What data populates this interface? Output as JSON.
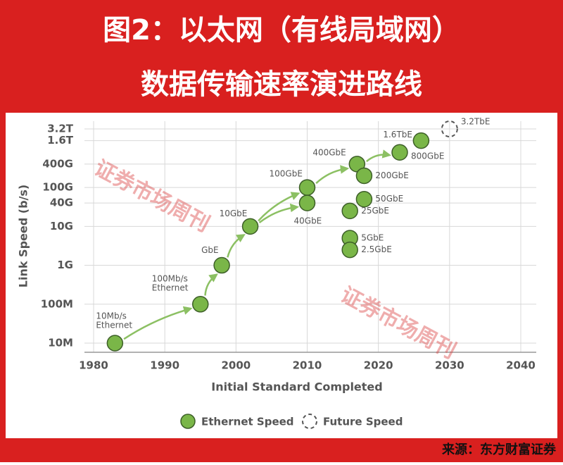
{
  "header": {
    "title_line1": "图2：以太网（有线局域网）",
    "title_line2": "数据传输速率演进路线"
  },
  "chart_data": {
    "type": "scatter",
    "x_label": "Initial Standard Completed",
    "y_label": "Link Speed (b/s)",
    "xlim": [
      1980,
      2040
    ],
    "xticks": [
      1980,
      1990,
      2000,
      2010,
      2020,
      2030,
      2040
    ],
    "ylim": [
      10000000,
      3200000000000
    ],
    "log_y": true,
    "grid": true,
    "yticks": [
      {
        "value": 10000000,
        "label": "10M"
      },
      {
        "value": 100000000,
        "label": "100M"
      },
      {
        "value": 1000000000,
        "label": "1G"
      },
      {
        "value": 10000000000,
        "label": "10G"
      },
      {
        "value": 40000000000,
        "label": "40G"
      },
      {
        "value": 100000000000,
        "label": "100G"
      },
      {
        "value": 400000000000,
        "label": "400G"
      },
      {
        "value": 1600000000000,
        "label": "1.6T"
      },
      {
        "value": 3200000000000,
        "label": "3.2T"
      }
    ],
    "series": [
      {
        "name": "Ethernet Speed",
        "color": "#7ab648",
        "x": [
          1983,
          1995,
          1998,
          2002,
          2010,
          2010,
          2017,
          2018,
          2018,
          2016,
          2016,
          2016,
          2023,
          2026
        ],
        "values": [
          10000000,
          100000000,
          1000000000,
          10000000000,
          100000000000,
          40000000000,
          400000000000,
          200000000000,
          50000000000,
          25000000000,
          5000000000,
          2500000000,
          800000000000,
          1600000000000
        ],
        "labels": [
          [
            "10Mb/s",
            "Ethernet"
          ],
          [
            "100Mb/s",
            "Ethernet"
          ],
          [
            "GbE"
          ],
          [
            "10GbE"
          ],
          [
            "100GbE"
          ],
          [
            "40GbE"
          ],
          [
            "400GbE"
          ],
          [
            "200GbE"
          ],
          [
            "50GbE"
          ],
          [
            "25GbE"
          ],
          [
            "5GbE"
          ],
          [
            "2.5GbE"
          ],
          [
            "800GbE"
          ],
          [
            "1.6TbE"
          ]
        ]
      },
      {
        "name": "Future Speed",
        "color": "#555555",
        "dashed": true,
        "x": [
          2030
        ],
        "values": [
          3200000000000
        ],
        "labels": [
          [
            "3.2TbE"
          ]
        ]
      }
    ],
    "watermarks": [
      "证券市场周刊",
      "证券市场周刊"
    ]
  },
  "footer": {
    "source": "来源：东方财富证券"
  }
}
